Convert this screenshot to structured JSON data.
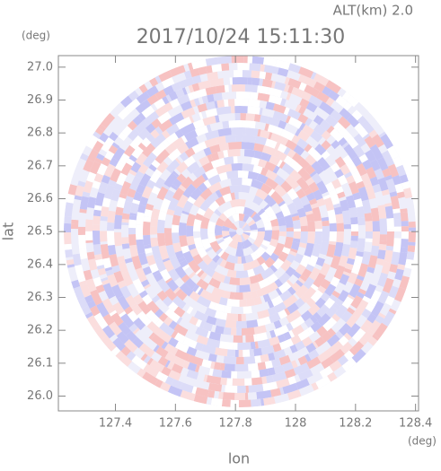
{
  "chart_data": {
    "type": "ppi",
    "title": "2017/10/24 15:11:30",
    "altitude_label": "ALT(km) 2.0",
    "x_label": "lon",
    "y_label": "lat",
    "x_unit": "(deg)",
    "y_unit": "(deg)",
    "xlim": [
      127.21,
      128.41
    ],
    "ylim": [
      25.955,
      27.035
    ],
    "xticks": [
      127.4,
      127.6,
      127.8,
      128.0,
      128.2,
      128.4
    ],
    "yticks": [
      {
        "value": 26,
        "label": "26.0"
      },
      26.1,
      26.2,
      26.3,
      26.4,
      26.5,
      26.6,
      26.7,
      26.8,
      26.9,
      {
        "value": 27,
        "label": "27.0"
      }
    ]
  }
}
